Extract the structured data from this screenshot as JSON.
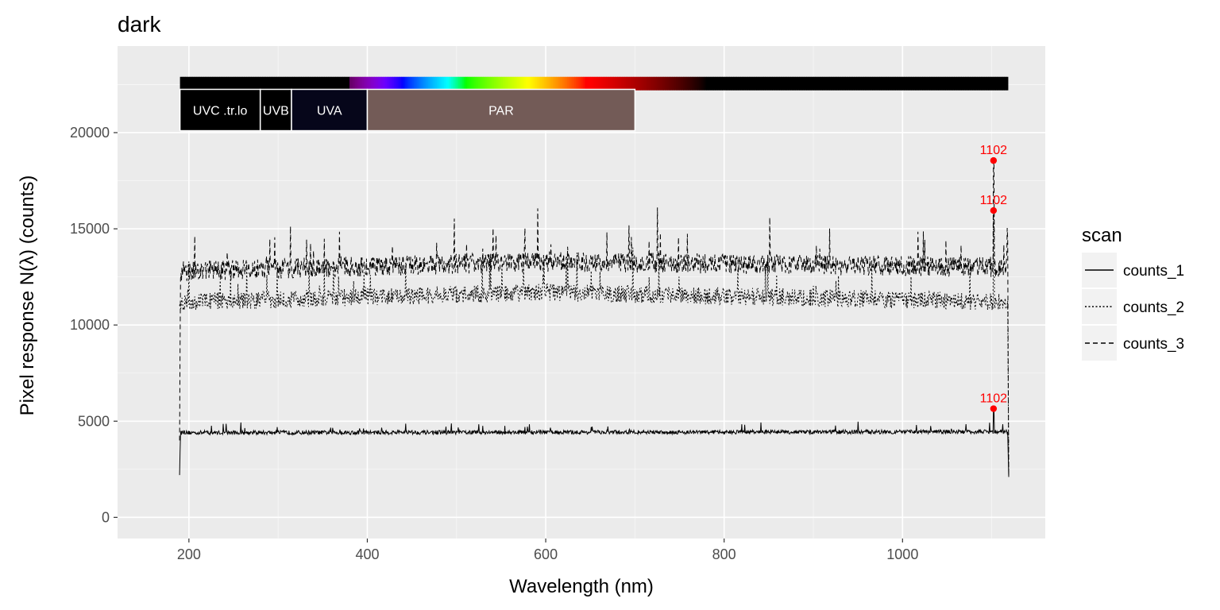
{
  "chart_data": {
    "type": "line",
    "title": "dark",
    "xlabel": "Wavelength (nm)",
    "ylabel": "Pixel response N(λ) (counts)",
    "xlim": [
      120,
      1160
    ],
    "ylim": [
      -1100,
      24500
    ],
    "x_ticks": [
      200,
      400,
      600,
      800,
      1000
    ],
    "y_ticks": [
      0,
      5000,
      10000,
      15000,
      20000
    ],
    "grid": true,
    "legend": {
      "title": "scan",
      "position": "right",
      "entries": [
        "counts_1",
        "counts_2",
        "counts_3"
      ]
    },
    "series": [
      {
        "name": "counts_1",
        "linetype": "solid",
        "profile": [
          [
            189.5,
            2200
          ],
          [
            190.5,
            4400
          ],
          [
            1118,
            4450
          ],
          [
            1119,
            2100
          ]
        ],
        "baseline": 4500,
        "noise": 150,
        "peak": {
          "x": 1102,
          "y": 5650
        }
      },
      {
        "name": "counts_2",
        "linetype": "dotted",
        "profile": [
          [
            189.5,
            11000
          ],
          [
            190.5,
            11200
          ],
          [
            600,
            11700
          ],
          [
            1118,
            11200
          ],
          [
            1119,
            2200
          ]
        ],
        "baseline": 11600,
        "noise": 650,
        "peak": {
          "x": 1102,
          "y": 15950
        }
      },
      {
        "name": "counts_3",
        "linetype": "dashed",
        "profile": [
          [
            189.5,
            4000
          ],
          [
            190.5,
            12800
          ],
          [
            600,
            13300
          ],
          [
            1118,
            13000
          ],
          [
            1119,
            2100
          ]
        ],
        "baseline": 13200,
        "noise": 750,
        "peak": {
          "x": 1102,
          "y": 18550
        }
      }
    ],
    "peak_labels": [
      "1102",
      "1102",
      "1102"
    ],
    "wavebands": [
      {
        "label": "UVC .tr.lo",
        "from": 190,
        "to": 280,
        "color": "#000000"
      },
      {
        "label": "UVB",
        "from": 280,
        "to": 315,
        "color": "#000000"
      },
      {
        "label": "UVA",
        "from": 315,
        "to": 400,
        "color": "#06061a"
      },
      {
        "label": "PAR",
        "from": 400,
        "to": 700,
        "color": "#735b57"
      }
    ],
    "color_bar": {
      "from": 190,
      "to": 1118,
      "y_range": [
        22200,
        22900
      ]
    },
    "waveband_box_range": [
      20100,
      22250
    ]
  },
  "colors": {
    "panel": "#ebebeb",
    "grid_major": "#ffffff",
    "line": "#000000",
    "peak": "#ff0000",
    "legend_key": "#f2f2f2"
  }
}
